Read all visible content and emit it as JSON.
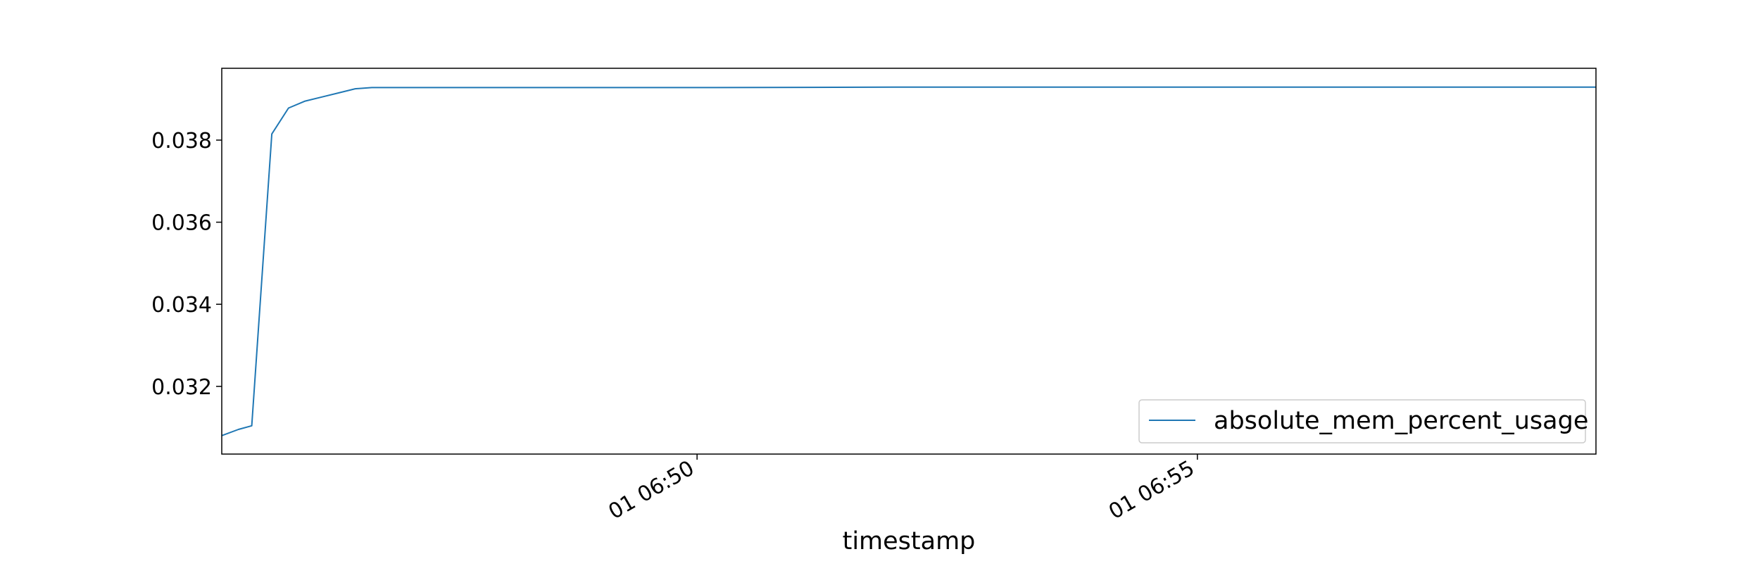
{
  "chart_data": {
    "type": "line",
    "title": "",
    "xlabel": "timestamp",
    "ylabel": "",
    "x_axis_kind": "time",
    "xlim": [
      "01 06:45:15",
      "01 06:58:59"
    ],
    "ylim": [
      0.03035,
      0.03975
    ],
    "x_ticks": [
      {
        "x": "01 06:50:00",
        "label": "01 06:50"
      },
      {
        "x": "01 06:55:00",
        "label": "01 06:55"
      }
    ],
    "y_ticks": [
      {
        "y": 0.032,
        "label": "0.032"
      },
      {
        "y": 0.034,
        "label": "0.034"
      },
      {
        "y": 0.036,
        "label": "0.036"
      },
      {
        "y": 0.038,
        "label": "0.038"
      }
    ],
    "grid": false,
    "legend_position": "lower right",
    "series": [
      {
        "name": "absolute_mem_percent_usage",
        "color": "#1f77b4",
        "x": [
          "01 06:45:15",
          "01 06:45:25",
          "01 06:45:33",
          "01 06:45:45",
          "01 06:45:55",
          "01 06:46:05",
          "01 06:46:15",
          "01 06:46:25",
          "01 06:46:35",
          "01 06:46:45",
          "01 06:47:30",
          "01 06:48:30",
          "01 06:50:00",
          "01 06:52:00",
          "01 06:55:00",
          "01 06:58:59"
        ],
        "y": [
          0.0308,
          0.03095,
          0.03104,
          0.03815,
          0.03878,
          0.03895,
          0.03905,
          0.03915,
          0.03925,
          0.03928,
          0.03928,
          0.03928,
          0.03928,
          0.03929,
          0.03929,
          0.03929
        ]
      }
    ]
  }
}
